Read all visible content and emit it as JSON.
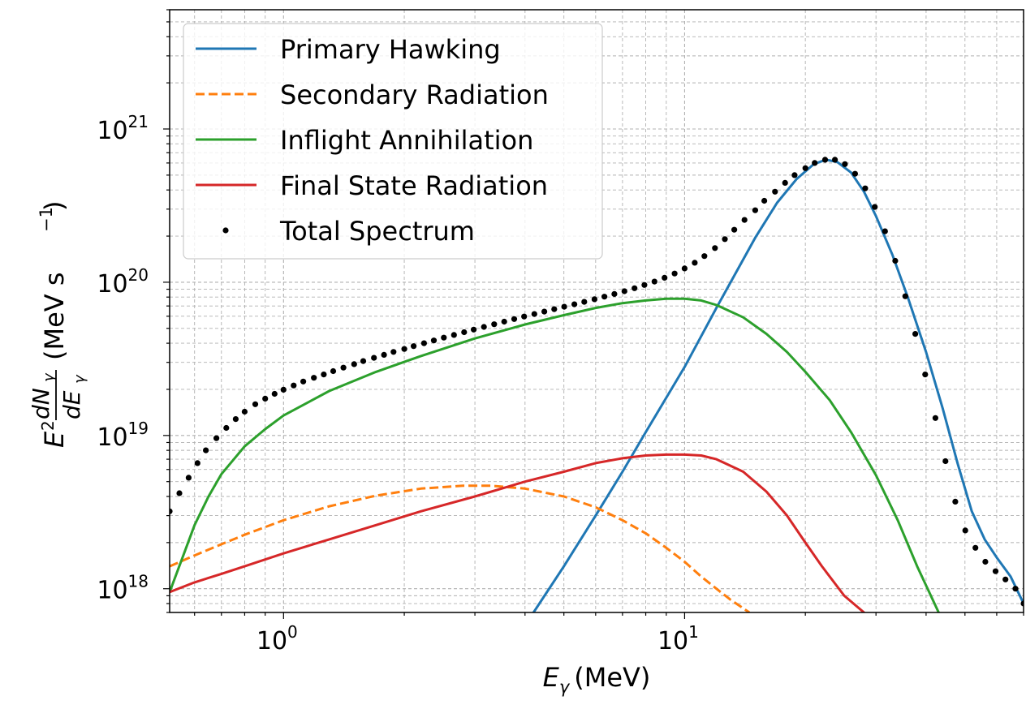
{
  "chart_data": {
    "type": "line",
    "xscale": "log",
    "yscale": "log",
    "xlim": [
      0.52,
      70
    ],
    "ylim": [
      7e+17,
      6e+21
    ],
    "xlabel": {
      "sym": "E",
      "sub": "γ",
      "unit": "(MeV)"
    },
    "ylabel": {
      "pre": "E",
      "pre_sup": "2",
      "num": "dN",
      "num_sub": "γ",
      "den": "dE",
      "den_sub": "γ",
      "unit_open": "(MeV s",
      "unit_sup": "−1",
      "unit_close": ")"
    },
    "x_ticks": [
      {
        "value": 1,
        "base": "10",
        "exp": "0"
      },
      {
        "value": 10,
        "base": "10",
        "exp": "1"
      }
    ],
    "y_ticks": [
      {
        "value": 1e+18,
        "base": "10",
        "exp": "18"
      },
      {
        "value": 1e+19,
        "base": "10",
        "exp": "19"
      },
      {
        "value": 1e+20,
        "base": "10",
        "exp": "20"
      },
      {
        "value": 1e+21,
        "base": "10",
        "exp": "21"
      }
    ],
    "grid": true,
    "legend_position": "top-left",
    "series": [
      {
        "name": "Primary Hawking",
        "color": "#1f77b4",
        "style": "solid",
        "x": [
          4.2,
          5,
          6,
          7,
          8,
          10,
          12,
          15,
          17,
          19,
          21,
          22.5,
          24,
          26,
          28,
          30,
          33,
          36,
          40,
          44,
          48,
          52,
          56,
          60,
          65,
          70
        ],
        "y": [
          7e+17,
          1.4e+18,
          3e+18,
          5.8e+18,
          1.05e+19,
          2.8e+19,
          6.8e+19,
          1.95e+20,
          3.3e+20,
          4.7e+20,
          5.9e+20,
          6.3e+20,
          6.1e+20,
          5.2e+20,
          3.9e+20,
          2.7e+20,
          1.5e+20,
          8e+19,
          3.5e+19,
          1.5e+19,
          6.5e+18,
          3.2e+18,
          2.1e+18,
          1.6e+18,
          1.2e+18,
          8e+17
        ]
      },
      {
        "name": "Secondary Radiation",
        "color": "#ff7f0e",
        "style": "dashed",
        "x": [
          0.52,
          0.6,
          0.7,
          0.8,
          1,
          1.3,
          1.7,
          2.2,
          2.8,
          3.3,
          4,
          5,
          6,
          7,
          8,
          9,
          10,
          11,
          12,
          13,
          14.5
        ],
        "y": [
          1.4e+18,
          1.65e+18,
          1.95e+18,
          2.25e+18,
          2.8e+18,
          3.45e+18,
          4.05e+18,
          4.5e+18,
          4.7e+18,
          4.7e+18,
          4.5e+18,
          4e+18,
          3.4e+18,
          2.8e+18,
          2.3e+18,
          1.85e+18,
          1.5e+18,
          1.2e+18,
          1e+18,
          8.5e+17,
          7e+17
        ]
      },
      {
        "name": "Inflight Annihilation",
        "color": "#2ca02c",
        "style": "solid",
        "x": [
          0.52,
          0.56,
          0.6,
          0.65,
          0.7,
          0.8,
          0.9,
          1,
          1.3,
          1.7,
          2.2,
          3,
          4,
          5,
          6,
          7,
          8,
          9,
          10,
          11,
          12,
          14,
          16,
          18,
          20,
          23,
          26,
          30,
          34,
          38,
          43
        ],
        "y": [
          9.5e+17,
          1.6e+18,
          2.6e+18,
          4e+18,
          5.6e+18,
          8.5e+18,
          1.1e+19,
          1.35e+19,
          1.95e+19,
          2.6e+19,
          3.3e+19,
          4.3e+19,
          5.3e+19,
          6.1e+19,
          6.8e+19,
          7.3e+19,
          7.6e+19,
          7.8e+19,
          7.8e+19,
          7.6e+19,
          7.1e+19,
          5.9e+19,
          4.6e+19,
          3.5e+19,
          2.6e+19,
          1.7e+19,
          1.05e+19,
          5.5e+18,
          2.8e+18,
          1.4e+18,
          7e+17
        ]
      },
      {
        "name": "Final State Radiation",
        "color": "#d62728",
        "style": "solid",
        "x": [
          0.52,
          0.6,
          0.7,
          0.8,
          1,
          1.3,
          1.7,
          2.2,
          3,
          4,
          5,
          6,
          7,
          8,
          9,
          10,
          11,
          12,
          14,
          16,
          18,
          20,
          22,
          25,
          28
        ],
        "y": [
          9.5e+17,
          1.1e+18,
          1.25e+18,
          1.4e+18,
          1.7e+18,
          2.1e+18,
          2.6e+18,
          3.2e+18,
          4e+18,
          5e+18,
          5.8e+18,
          6.6e+18,
          7.1e+18,
          7.4e+18,
          7.5e+18,
          7.5e+18,
          7.4e+18,
          7e+18,
          5.8e+18,
          4.3e+18,
          3e+18,
          2e+18,
          1.4e+18,
          9e+17,
          7e+17
        ]
      },
      {
        "name": "Total Spectrum",
        "color": "#000000",
        "style": "dots",
        "x": [
          0.52,
          0.55,
          0.58,
          0.61,
          0.64,
          0.68,
          0.72,
          0.76,
          0.8,
          0.85,
          0.9,
          0.95,
          1.0,
          1.06,
          1.12,
          1.19,
          1.26,
          1.33,
          1.41,
          1.5,
          1.58,
          1.68,
          1.78,
          1.88,
          2.0,
          2.11,
          2.24,
          2.37,
          2.51,
          2.66,
          2.82,
          2.98,
          3.16,
          3.35,
          3.55,
          3.76,
          3.98,
          4.22,
          4.47,
          4.73,
          5.01,
          5.31,
          5.62,
          5.96,
          6.31,
          6.68,
          7.08,
          7.5,
          7.94,
          8.41,
          8.91,
          9.44,
          10.0,
          10.6,
          11.2,
          11.9,
          12.6,
          13.3,
          14.1,
          15.0,
          15.8,
          16.8,
          17.8,
          18.8,
          20.0,
          21.1,
          22.4,
          23.7,
          25.1,
          26.6,
          28.2,
          29.8,
          31.6,
          33.5,
          35.5,
          37.6,
          39.8,
          42.2,
          44.7,
          47.3,
          50.1,
          53.1,
          56.2,
          59.6,
          63.1,
          66.8,
          70.0
        ],
        "y": [
          3.2e+18,
          4.2e+18,
          5.3e+18,
          6.6e+18,
          8e+18,
          9.6e+18,
          1.12e+19,
          1.28e+19,
          1.43e+19,
          1.6e+19,
          1.74e+19,
          1.87e+19,
          1.99e+19,
          2.12e+19,
          2.25e+19,
          2.38e+19,
          2.5e+19,
          2.63e+19,
          2.77e+19,
          2.92e+19,
          3.06e+19,
          3.21e+19,
          3.36e+19,
          3.51e+19,
          3.67e+19,
          3.83e+19,
          4e+19,
          4.17e+19,
          4.35e+19,
          4.53e+19,
          4.72e+19,
          4.91e+19,
          5.11e+19,
          5.32e+19,
          5.53e+19,
          5.75e+19,
          5.97e+19,
          6.2e+19,
          6.43e+19,
          6.67e+19,
          6.92e+19,
          7.18e+19,
          7.45e+19,
          7.74e+19,
          8.05e+19,
          8.38e+19,
          8.74e+19,
          9.14e+19,
          9.6e+19,
          1.01e+20,
          1.07e+20,
          1.14e+20,
          1.23e+20,
          1.34e+20,
          1.48e+20,
          1.67e+20,
          1.91e+20,
          2.2e+20,
          2.55e+20,
          2.95e+20,
          3.4e+20,
          3.9e+20,
          4.45e+20,
          5e+20,
          5.55e+20,
          6e+20,
          6.3e+20,
          6.3e+20,
          5.9e+20,
          5.1e+20,
          4.1e+20,
          3.1e+20,
          2.15e+20,
          1.38e+20,
          8.1e+19,
          4.6e+19,
          2.5e+19,
          1.3e+19,
          6.8e+18,
          3.7e+18,
          2.4e+18,
          1.85e+18,
          1.5e+18,
          1.3e+18,
          1.15e+18,
          1e+18,
          8e+17
        ]
      }
    ]
  }
}
